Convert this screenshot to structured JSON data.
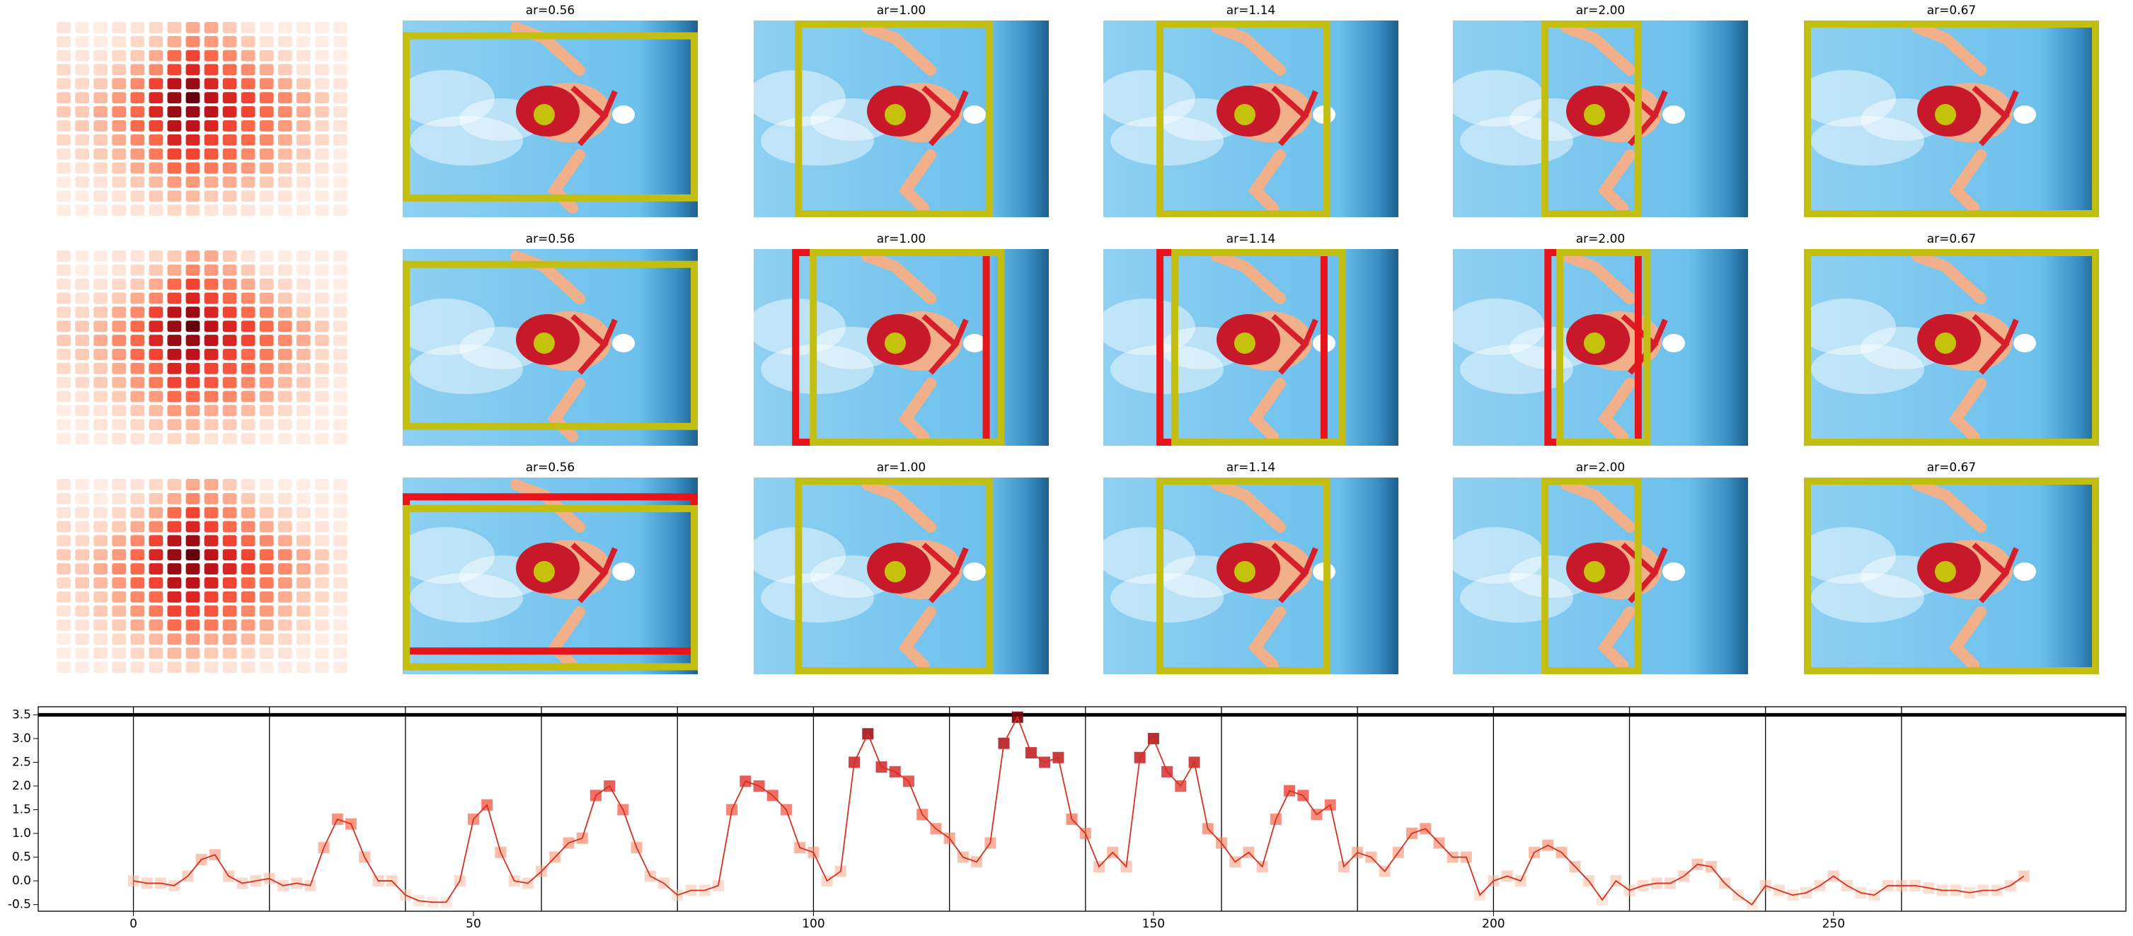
{
  "panel_titles": [
    [
      "ar=0.56",
      "ar=1.00",
      "ar=1.14",
      "ar=2.00",
      "ar=0.67"
    ],
    [
      "ar=0.56",
      "ar=1.00",
      "ar=1.14",
      "ar=2.00",
      "ar=0.67"
    ],
    [
      "ar=0.56",
      "ar=1.00",
      "ar=1.14",
      "ar=2.00",
      "ar=0.67"
    ]
  ],
  "heatmap": {
    "values": [
      [
        0.1,
        0.05,
        0.05,
        0.1,
        0.1,
        0.15,
        0.2,
        0.3,
        0.3,
        0.2,
        0.1,
        0.05,
        0.05,
        0.05,
        0.05,
        0.05
      ],
      [
        0.1,
        0.05,
        0.05,
        0.1,
        0.15,
        0.2,
        0.3,
        0.4,
        0.35,
        0.3,
        0.2,
        0.1,
        0.1,
        0.05,
        0.05,
        0.05
      ],
      [
        0.1,
        0.1,
        0.1,
        0.15,
        0.2,
        0.3,
        0.5,
        0.6,
        0.5,
        0.4,
        0.3,
        0.2,
        0.15,
        0.1,
        0.05,
        0.05
      ],
      [
        0.15,
        0.1,
        0.15,
        0.2,
        0.3,
        0.4,
        0.6,
        0.7,
        0.6,
        0.5,
        0.4,
        0.3,
        0.2,
        0.1,
        0.1,
        0.05
      ],
      [
        0.15,
        0.15,
        0.2,
        0.3,
        0.4,
        0.6,
        0.8,
        0.9,
        0.7,
        0.6,
        0.5,
        0.4,
        0.3,
        0.2,
        0.1,
        0.1
      ],
      [
        0.2,
        0.2,
        0.25,
        0.35,
        0.5,
        0.7,
        0.9,
        1.0,
        0.8,
        0.7,
        0.6,
        0.5,
        0.4,
        0.3,
        0.2,
        0.1
      ],
      [
        0.2,
        0.2,
        0.3,
        0.4,
        0.5,
        0.7,
        0.9,
        0.9,
        0.8,
        0.7,
        0.6,
        0.5,
        0.4,
        0.3,
        0.2,
        0.1
      ],
      [
        0.15,
        0.2,
        0.25,
        0.35,
        0.5,
        0.6,
        0.8,
        0.8,
        0.7,
        0.6,
        0.5,
        0.45,
        0.35,
        0.25,
        0.15,
        0.1
      ],
      [
        0.15,
        0.15,
        0.2,
        0.3,
        0.4,
        0.5,
        0.7,
        0.7,
        0.6,
        0.55,
        0.5,
        0.4,
        0.3,
        0.2,
        0.15,
        0.1
      ],
      [
        0.1,
        0.15,
        0.2,
        0.25,
        0.35,
        0.45,
        0.6,
        0.6,
        0.55,
        0.5,
        0.4,
        0.35,
        0.25,
        0.2,
        0.1,
        0.05
      ],
      [
        0.1,
        0.1,
        0.15,
        0.2,
        0.3,
        0.35,
        0.5,
        0.5,
        0.45,
        0.4,
        0.35,
        0.3,
        0.2,
        0.15,
        0.1,
        0.05
      ],
      [
        0.05,
        0.1,
        0.1,
        0.15,
        0.2,
        0.25,
        0.35,
        0.35,
        0.3,
        0.3,
        0.25,
        0.2,
        0.15,
        0.1,
        0.05,
        0.05
      ],
      [
        0.05,
        0.05,
        0.1,
        0.1,
        0.15,
        0.2,
        0.25,
        0.25,
        0.2,
        0.2,
        0.15,
        0.1,
        0.1,
        0.05,
        0.05,
        0.05
      ],
      [
        0.05,
        0.05,
        0.05,
        0.1,
        0.1,
        0.1,
        0.15,
        0.15,
        0.1,
        0.1,
        0.1,
        0.05,
        0.05,
        0.05,
        0.05,
        0.05
      ]
    ]
  },
  "chart_data": {
    "type": "line",
    "x": [
      0,
      2,
      4,
      6,
      8,
      10,
      12,
      14,
      16,
      18,
      20,
      22,
      24,
      26,
      28,
      30,
      32,
      34,
      36,
      38,
      40,
      42,
      44,
      46,
      48,
      50,
      52,
      54,
      56,
      58,
      60,
      62,
      64,
      66,
      68,
      70,
      72,
      74,
      76,
      78,
      80,
      82,
      84,
      86,
      88,
      90,
      92,
      94,
      96,
      98,
      100,
      102,
      104,
      106,
      108,
      110,
      112,
      114,
      116,
      118,
      120,
      122,
      124,
      126,
      128,
      130,
      132,
      134,
      136,
      138,
      140,
      142,
      144,
      146,
      148,
      150,
      152,
      154,
      156,
      158,
      160,
      162,
      164,
      166,
      168,
      170,
      172,
      174,
      176,
      178,
      180,
      182,
      184,
      186,
      188,
      190,
      192,
      194,
      196,
      198,
      200,
      202,
      204,
      206,
      208,
      210,
      212,
      214,
      216,
      218,
      220,
      222,
      224,
      226,
      228,
      230,
      232,
      234,
      236,
      238,
      240,
      242,
      244,
      246,
      248,
      250,
      252,
      254,
      256,
      258,
      260,
      262,
      264,
      266,
      268,
      270,
      272,
      274,
      276,
      278
    ],
    "series": [
      {
        "color": "#d7301f",
        "values": [
          0.0,
          -0.05,
          -0.05,
          -0.1,
          0.1,
          0.45,
          0.55,
          0.1,
          -0.05,
          0.0,
          0.05,
          -0.1,
          -0.05,
          -0.1,
          0.7,
          1.3,
          1.2,
          0.5,
          0.0,
          0.0,
          -0.3,
          -0.42,
          -0.45,
          -0.45,
          0.0,
          1.3,
          1.6,
          0.6,
          0.0,
          -0.05,
          0.2,
          0.5,
          0.8,
          0.9,
          1.8,
          2.0,
          1.5,
          0.7,
          0.1,
          -0.05,
          -0.3,
          -0.2,
          -0.2,
          -0.1,
          1.5,
          2.1,
          2.0,
          1.8,
          1.5,
          0.7,
          0.6,
          0.0,
          0.2,
          2.5,
          3.1,
          2.4,
          2.3,
          2.1,
          1.4,
          1.1,
          0.9,
          0.5,
          0.4,
          0.8,
          2.9,
          3.45,
          2.7,
          2.5,
          2.6,
          1.3,
          1.0,
          0.3,
          0.6,
          0.3,
          2.6,
          3.0,
          2.3,
          2.0,
          2.5,
          1.1,
          0.8,
          0.4,
          0.6,
          0.3,
          1.3,
          1.9,
          1.8,
          1.4,
          1.6,
          0.3,
          0.6,
          0.5,
          0.2,
          0.6,
          1.0,
          1.1,
          0.8,
          0.5,
          0.5,
          -0.3,
          0.0,
          0.1,
          0.0,
          0.6,
          0.75,
          0.6,
          0.3,
          0.0,
          -0.4,
          0.0,
          -0.2,
          -0.1,
          -0.05,
          -0.05,
          0.1,
          0.35,
          0.3,
          -0.05,
          -0.3,
          -0.5,
          -0.1,
          -0.2,
          -0.3,
          -0.25,
          -0.1,
          0.1,
          -0.1,
          -0.25,
          -0.3,
          -0.1,
          -0.1,
          -0.1,
          -0.15,
          -0.2,
          -0.2,
          -0.25,
          -0.2,
          -0.2,
          -0.1,
          0.1
        ]
      }
    ],
    "xlim": [
      -14,
      293
    ],
    "ylim": [
      -0.64,
      3.67
    ],
    "xticks": [
      0,
      50,
      100,
      150,
      200,
      250
    ],
    "yticks": [
      -0.5,
      {
        "value": 0,
        "label": "0.0"
      },
      0.5,
      {
        "value": 1,
        "label": "1.0"
      },
      1.5,
      {
        "value": 2,
        "label": "2.0"
      },
      2.5,
      {
        "value": 3,
        "label": "3.0"
      },
      3.5
    ],
    "vlines": [
      0,
      20,
      40,
      60,
      80,
      100,
      120,
      140,
      160,
      180,
      200,
      220,
      240,
      260
    ],
    "hline": 3.5
  }
}
